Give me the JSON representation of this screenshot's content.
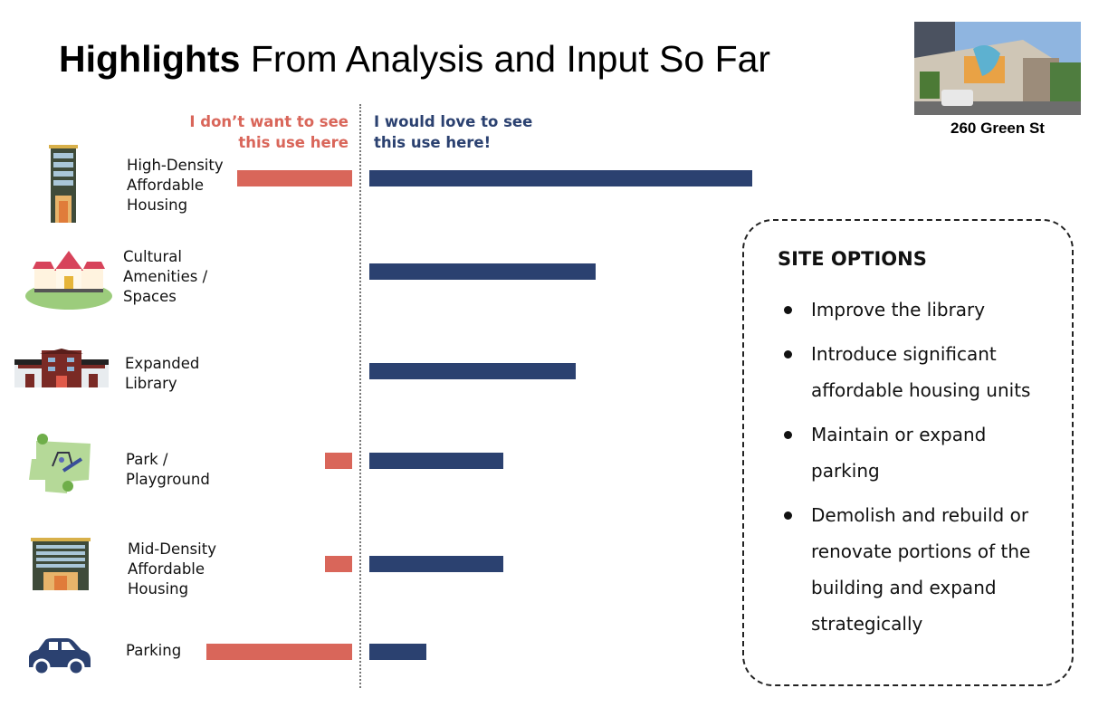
{
  "title": {
    "bold": "Highlights",
    "rest": " From Analysis and Input So Far"
  },
  "photo": {
    "caption": "260 Green St"
  },
  "chart_data": {
    "type": "bar",
    "orientation": "horizontal-diverging",
    "title": "Highlights From Analysis and Input So Far",
    "negative_header": "I don’t want to see this use here",
    "positive_header": "I would love to see this use here!",
    "categories": [
      "High-Density Affordable Housing",
      "Cultural Amenities / Spaces",
      "Expanded Library",
      "Park / Playground",
      "Mid-Density Affordable Housing",
      "Parking"
    ],
    "category_lines": [
      [
        "High-Density",
        "Affordable",
        "Housing"
      ],
      [
        "Cultural",
        "Amenities /",
        "Spaces"
      ],
      [
        "Expanded",
        "Library"
      ],
      [
        "Park /",
        "Playground"
      ],
      [
        "Mid-Density",
        "Affordable",
        "Housing"
      ],
      [
        "Parking"
      ]
    ],
    "icons": [
      "high-rise-building-icon",
      "cultural-hall-icon",
      "library-building-icon",
      "playground-icon",
      "mid-rise-building-icon",
      "car-icon"
    ],
    "series": [
      {
        "name": "I don’t want to see this use here",
        "color": "#d9665a",
        "values": [
          30,
          0,
          0,
          7,
          7,
          38
        ]
      },
      {
        "name": "I would love to see this use here!",
        "color": "#2b4170",
        "values": [
          100,
          59,
          54,
          35,
          35,
          15
        ]
      }
    ],
    "units": "relative (max = 100)",
    "xlim": [
      0,
      100
    ],
    "grid": false
  },
  "site_options": {
    "heading": "SITE OPTIONS",
    "items": [
      "Improve the library",
      "Introduce significant affordable housing units",
      "Maintain or expand parking",
      "Demolish and rebuild or renovate portions of the building and expand strategically"
    ]
  }
}
